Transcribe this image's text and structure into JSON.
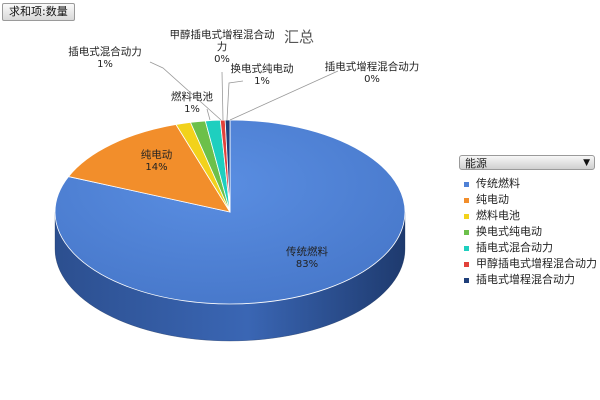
{
  "pivot": {
    "field_button": "求和项:数量",
    "legend_filter_label": "能源",
    "legend_dropdown_icon": "dropdown-arrow-icon"
  },
  "chart_data": {
    "type": "pie",
    "style": "3d-pie",
    "title": "汇总",
    "legend_placement": "right",
    "slices": [
      {
        "label": "传统燃料",
        "value": 83,
        "pct_label": "83%",
        "color": "#4f81d6"
      },
      {
        "label": "纯电动",
        "value": 14,
        "pct_label": "14%",
        "color": "#f28e2b"
      },
      {
        "label": "燃料电池",
        "value": 1,
        "pct_label": "1%",
        "color": "#f2d21b"
      },
      {
        "label": "换电式纯电动",
        "value": 1,
        "pct_label": "1%",
        "color": "#6cc04a"
      },
      {
        "label": "插电式混合动力",
        "value": 1,
        "pct_label": "1%",
        "color": "#1ecfbf"
      },
      {
        "label": "甲醇插电式增程混合动力",
        "value": 0,
        "pct_label": "0%",
        "color": "#e2413a"
      },
      {
        "label": "插电式增程混合动力",
        "value": 0,
        "pct_label": "0%",
        "color": "#1f3f7a"
      }
    ]
  }
}
